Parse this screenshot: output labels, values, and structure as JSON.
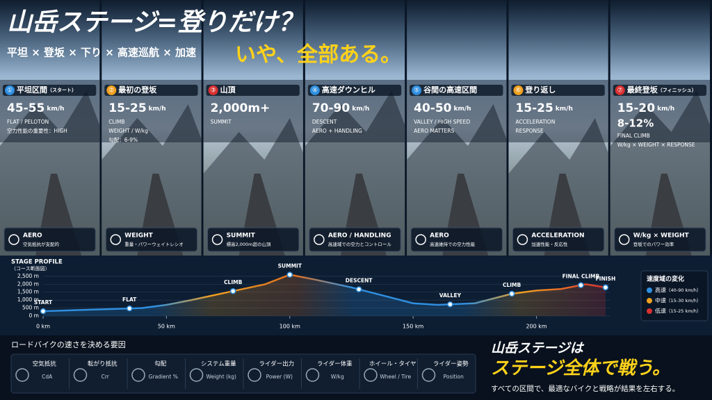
{
  "header": {
    "title": "山岳ステージ=登りだけ？",
    "subtitle": "平坦 × 登坂 × 下り × 高速巡航 × 加速",
    "tagline": "いや、全部ある。"
  },
  "panels": [
    {
      "num": "①",
      "title": "平坦区間",
      "tag": "（スタート）",
      "speed": "45-55",
      "unit": "km/h",
      "lines": [
        "FLAT / PELOTON",
        "空力性能の重要性：HIGH"
      ],
      "icon_title": "AERO",
      "icon_text": "空気抵抗が支配的",
      "color": "#2f8fe0"
    },
    {
      "num": "②",
      "title": "最初の登坂",
      "speed": "15-25",
      "unit": "km/h",
      "lines": [
        "CLIMB",
        "WEIGHT / W/kg",
        "勾配：6-9%"
      ],
      "icon_title": "WEIGHT",
      "icon_text": "重量・パワーウェイトレシオ",
      "color": "#f0a020"
    },
    {
      "num": "③",
      "title": "山頂",
      "speed": "2,000m+",
      "lines": [
        "SUMMIT"
      ],
      "icon_title": "SUMMIT",
      "icon_text": "標高2,000m超の山頂",
      "color": "#d83030"
    },
    {
      "num": "④",
      "title": "高速ダウンヒル",
      "speed": "70-90",
      "unit": "km/h",
      "lines": [
        "DESCENT",
        "AERO + HANDLING"
      ],
      "icon_title": "AERO / HANDLING",
      "icon_text": "高速域での空力とコントロール",
      "color": "#2f8fe0"
    },
    {
      "num": "⑤",
      "title": "谷間の高速区間",
      "speed": "40-50",
      "unit": "km/h",
      "lines": [
        "VALLEY / HIGH SPEED",
        "AERO MATTERS"
      ],
      "icon_title": "AERO",
      "icon_text": "高速維持での空力性能",
      "color": "#2f8fe0"
    },
    {
      "num": "⑥",
      "title": "登り返し",
      "speed": "15-25",
      "unit": "km/h",
      "lines": [
        "ACCELERATION",
        "RESPONSE"
      ],
      "icon_title": "ACCELERATION",
      "icon_text": "加速性能・反応性",
      "color": "#f0a020"
    },
    {
      "num": "⑦",
      "title": "最終登坂",
      "tag": "（フィニッシュ）",
      "speed": "15-20",
      "unit": "km/h",
      "grade": "8-12%",
      "lines": [
        "FINAL CLIMB",
        "W/kg × WEIGHT × RESPONSE"
      ],
      "icon_title": "W/kg × WEIGHT",
      "icon_text": "登坂でのパワー効率",
      "color": "#d83030"
    }
  ],
  "chart_data": {
    "type": "area",
    "title": "STAGE PROFILE",
    "subtitle": "（コース断面図）",
    "x": [
      0,
      20,
      40,
      50,
      60,
      75,
      90,
      100,
      110,
      125,
      140,
      150,
      160,
      175,
      190,
      200,
      210,
      220,
      228
    ],
    "values": [
      300,
      400,
      500,
      700,
      1000,
      1500,
      2000,
      2600,
      2300,
      1800,
      1200,
      800,
      700,
      800,
      1400,
      1600,
      1700,
      2000,
      1800
    ],
    "xlim": [
      0,
      230
    ],
    "ylim": [
      0,
      2800
    ],
    "xticks": [
      {
        "value": 0,
        "label": "0 km"
      },
      {
        "value": 50,
        "label": "50 km"
      },
      {
        "value": 100,
        "label": "100 km"
      },
      {
        "value": 150,
        "label": "150 km"
      },
      {
        "value": 200,
        "label": "200 km"
      }
    ],
    "yticks": [
      {
        "value": 0,
        "label": "0 m"
      },
      {
        "value": 500,
        "label": "500 m"
      },
      {
        "value": 1000,
        "label": "1,000 m"
      },
      {
        "value": 1500,
        "label": "1,500 m"
      },
      {
        "value": 2000,
        "label": "2,000 m"
      },
      {
        "value": 2500,
        "label": "2,500 m"
      }
    ],
    "annotations": [
      {
        "label": "START",
        "x": 0
      },
      {
        "label": "FLAT",
        "x": 35
      },
      {
        "label": "CLIMB",
        "x": 77
      },
      {
        "label": "SUMMIT",
        "x": 100
      },
      {
        "label": "DESCENT",
        "x": 128
      },
      {
        "label": "VALLEY",
        "x": 165
      },
      {
        "label": "CLIMB",
        "x": 190
      },
      {
        "label": "FINAL CLIMB",
        "x": 218
      },
      {
        "label": "FINISH",
        "x": 228
      }
    ],
    "legend": {
      "title": "速度域の変化",
      "items": [
        {
          "name": "高速",
          "range": "（40-90 km/h）",
          "color": "#2f8fe0"
        },
        {
          "name": "中速",
          "range": "（15-30 km/h）",
          "color": "#f0a020"
        },
        {
          "name": "低速",
          "range": "（15-25 km/h）",
          "color": "#d83030"
        }
      ]
    }
  },
  "factors": {
    "title": "ロードバイクの速さを決める要因",
    "items": [
      {
        "name": "空気抵抗",
        "sub": "CdA"
      },
      {
        "name": "転がり抵抗",
        "sub": "Crr"
      },
      {
        "name": "勾配",
        "sub": "Gradient %"
      },
      {
        "name": "システム重量",
        "sub": "Weight (kg)"
      },
      {
        "name": "ライダー出力",
        "sub": "Power (W)"
      },
      {
        "name": "ライダー体重",
        "sub": "W/kg"
      },
      {
        "name": "ホイール・タイヤ",
        "sub": "Wheel / Tire"
      },
      {
        "name": "ライダー姿勢",
        "sub": "Position"
      }
    ]
  },
  "footer": {
    "line1": "山岳ステージは",
    "line2": "ステージ全体で戦う。",
    "note": "すべての区間で、最適なバイクと戦略が結果を左右する。"
  }
}
